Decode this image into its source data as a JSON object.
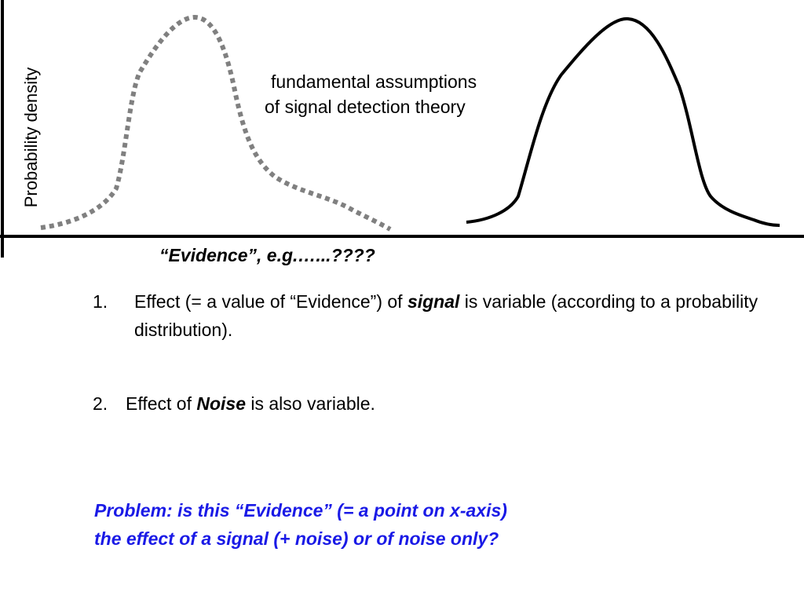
{
  "y_axis_label": "Probability density",
  "title": {
    "lines": [
      "fundamental assumptions",
      "of signal detection theory"
    ]
  },
  "x_axis_label": "“Evidence”, e.g.…...????",
  "points": [
    {
      "number": "1.",
      "parts": [
        "Effect (= a value of “Evidence”) of ",
        "signal",
        " is variable (according to a probability distribution)."
      ]
    },
    {
      "number": "2.",
      "parts": [
        "Effect of ",
        "Noise",
        " is also variable."
      ]
    }
  ],
  "problem": {
    "lines": [
      "Problem: is this “Evidence” (= a point on x-axis)",
      "the effect of a signal (+ noise) or of noise only?"
    ]
  }
}
